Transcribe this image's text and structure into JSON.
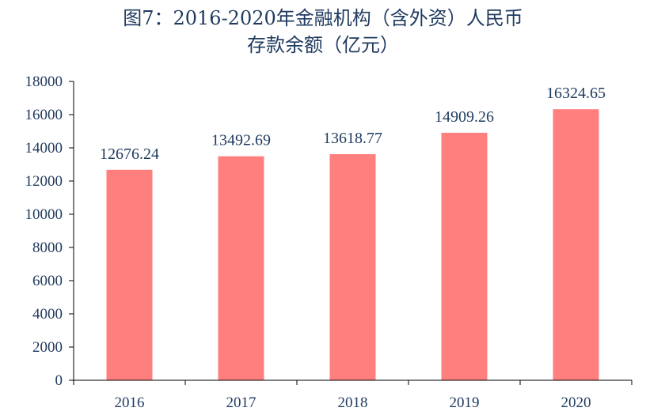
{
  "chart_data": {
    "type": "bar",
    "title": "图7：2016-2020年金融机构（含外资）人民币",
    "subtitle": "存款余额（亿元）",
    "categories": [
      "2016",
      "2017",
      "2018",
      "2019",
      "2020"
    ],
    "values": [
      12676.24,
      13492.69,
      13618.77,
      14909.26,
      16324.65
    ],
    "value_labels": [
      "12676.24",
      "13492.69",
      "13618.77",
      "14909.26",
      "16324.65"
    ],
    "ylim": [
      0,
      18000
    ],
    "yticks": [
      "0",
      "2000",
      "4000",
      "6000",
      "8000",
      "10000",
      "12000",
      "14000",
      "16000",
      "18000"
    ],
    "xlabel": "",
    "ylabel": "",
    "grid": false,
    "bar_color": "#ff7f7f",
    "axis_color": "#000000",
    "text_color": "#1f3a5f"
  }
}
